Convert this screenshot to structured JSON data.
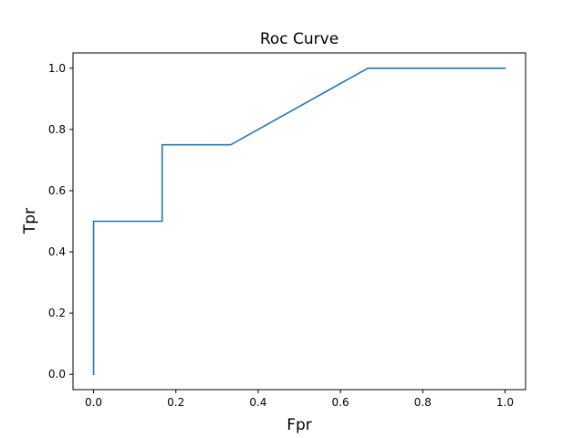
{
  "chart_data": {
    "type": "line",
    "title": "Roc Curve",
    "xlabel": "Fpr",
    "ylabel": "Tpr",
    "xlim": [
      -0.05,
      1.05
    ],
    "ylim": [
      -0.05,
      1.05
    ],
    "xticks": [
      0.0,
      0.2,
      0.4,
      0.6,
      0.8,
      1.0
    ],
    "yticks": [
      0.0,
      0.2,
      0.4,
      0.6,
      0.8,
      1.0
    ],
    "xtick_labels": [
      "0.0",
      "0.2",
      "0.4",
      "0.6",
      "0.8",
      "1.0"
    ],
    "ytick_labels": [
      "0.0",
      "0.2",
      "0.4",
      "0.6",
      "0.8",
      "1.0"
    ],
    "grid": false,
    "series": [
      {
        "color": "#1f77b4",
        "x": [
          0.0,
          0.0,
          0.1667,
          0.1667,
          0.3333,
          0.6667,
          1.0
        ],
        "y": [
          0.0,
          0.5,
          0.5,
          0.75,
          0.75,
          1.0,
          1.0
        ]
      }
    ]
  }
}
